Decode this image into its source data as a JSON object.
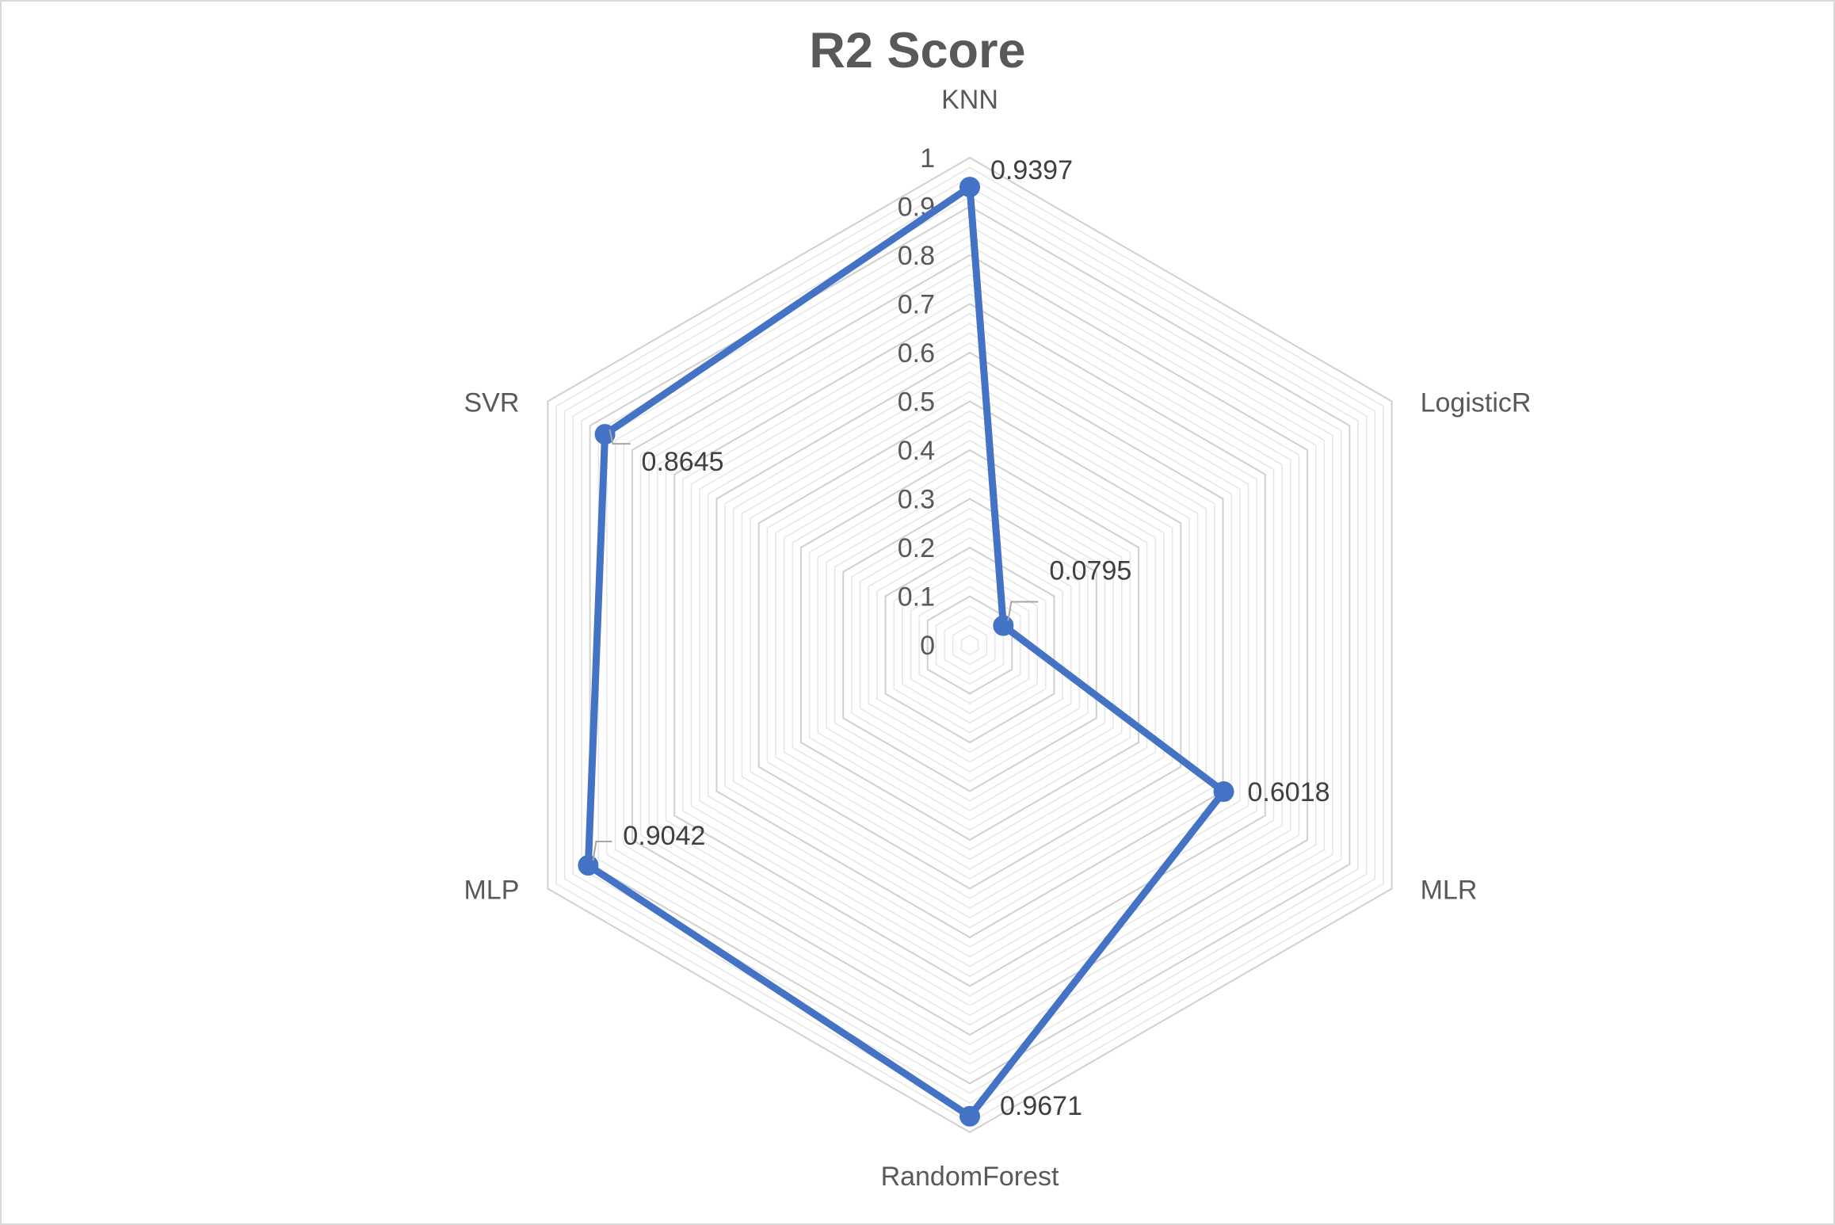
{
  "chart_data": {
    "type": "radar",
    "title": "R2 Score",
    "categories": [
      "KNN",
      "LogisticR",
      "MLR",
      "RandomForest",
      "MLP",
      "SVR"
    ],
    "series": [
      {
        "values": [
          0.9397,
          0.0795,
          0.6018,
          0.9671,
          0.9042,
          0.8645
        ]
      }
    ],
    "data_labels": [
      "0.9397",
      "0.0795",
      "0.6018",
      "0.9671",
      "0.9042",
      "0.8645"
    ],
    "axis": {
      "min": 0,
      "max": 1,
      "ticks": [
        "0",
        "0.1",
        "0.2",
        "0.3",
        "0.4",
        "0.5",
        "0.6",
        "0.7",
        "0.8",
        "0.9",
        "1"
      ],
      "minor_step": 0.02
    },
    "colors": {
      "series": "#4472C4",
      "grid": "#d9d9d9",
      "text": "#595959"
    },
    "legend": "none",
    "grid": true
  }
}
